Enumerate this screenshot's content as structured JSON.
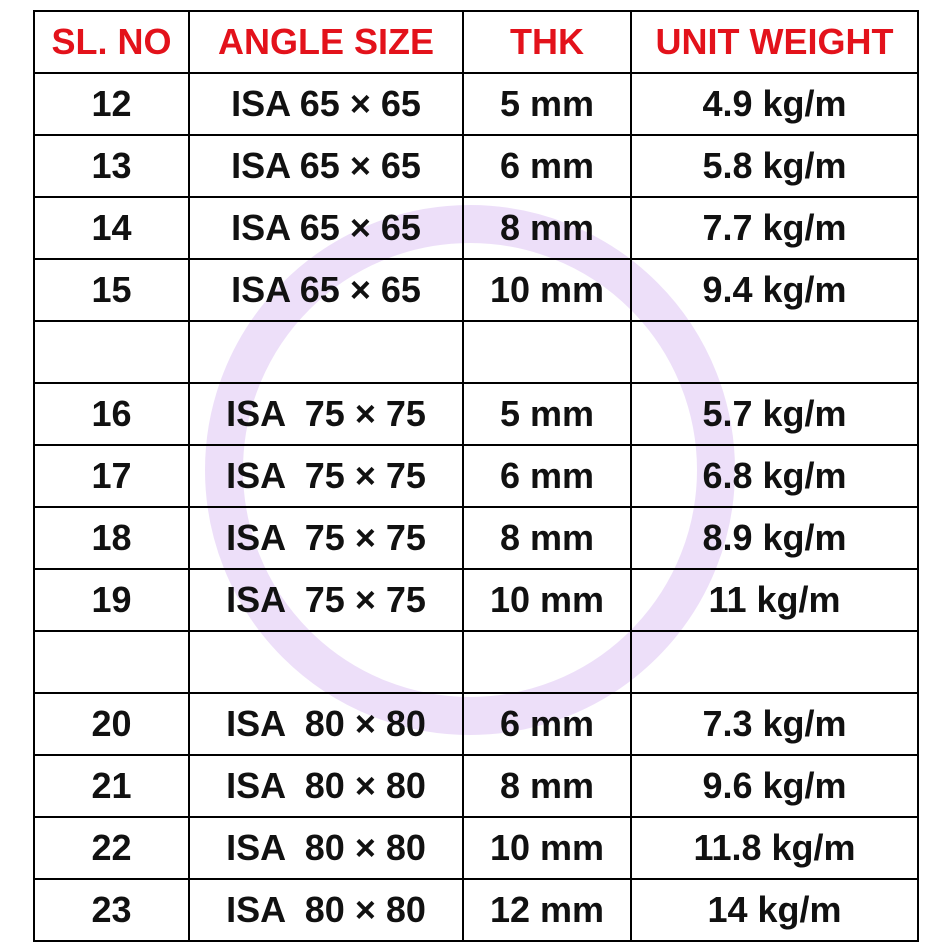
{
  "table": {
    "headers": [
      "SL. NO",
      "ANGLE SIZE",
      "THK",
      "UNIT WEIGHT"
    ],
    "rows": [
      [
        "12",
        "ISA 65 × 65",
        "5 mm",
        "4.9 kg/m"
      ],
      [
        "13",
        "ISA 65 × 65",
        "6 mm",
        "5.8 kg/m"
      ],
      [
        "14",
        "ISA 65 × 65",
        "8 mm",
        "7.7 kg/m"
      ],
      [
        "15",
        "ISA 65 × 65",
        "10 mm",
        "9.4 kg/m"
      ],
      [
        "",
        "",
        "",
        ""
      ],
      [
        "16",
        "ISA  75 × 75",
        "5 mm",
        "5.7 kg/m"
      ],
      [
        "17",
        "ISA  75 × 75",
        "6 mm",
        "6.8 kg/m"
      ],
      [
        "18",
        "ISA  75 × 75",
        "8 mm",
        "8.9 kg/m"
      ],
      [
        "19",
        "ISA  75 × 75",
        "10 mm",
        "11 kg/m"
      ],
      [
        "",
        "",
        "",
        ""
      ],
      [
        "20",
        "ISA  80 × 80",
        "6 mm",
        "7.3 kg/m"
      ],
      [
        "21",
        "ISA  80 × 80",
        "8 mm",
        "9.6 kg/m"
      ],
      [
        "22",
        "ISA  80 × 80",
        "10 mm",
        "11.8 kg/m"
      ],
      [
        "23",
        "ISA  80 × 80",
        "12 mm",
        "14 kg/m"
      ]
    ]
  },
  "colors": {
    "header_text": "#e3121b",
    "body_text": "#111111",
    "grid_lines": "#000000",
    "watermark_ring": "#ead9f8"
  }
}
